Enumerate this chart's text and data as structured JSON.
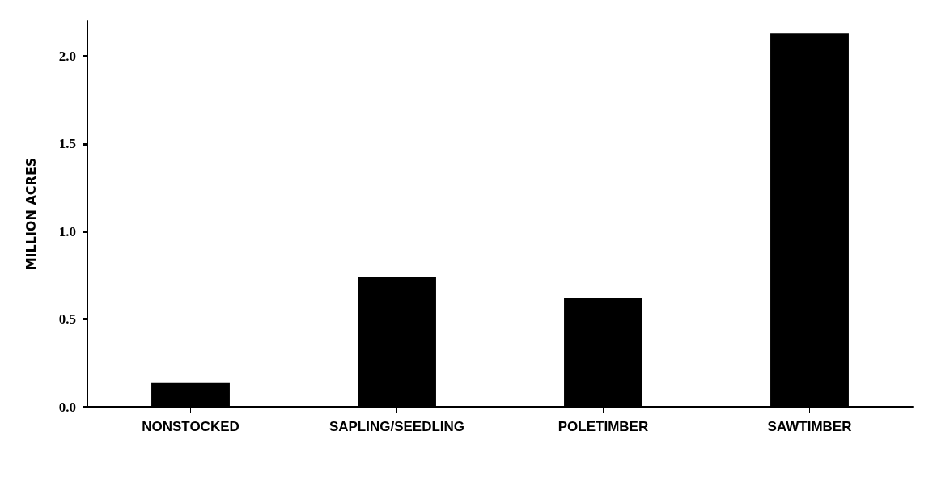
{
  "chart_data": {
    "type": "bar",
    "ylabel": "MILLION ACRES",
    "categories": [
      "NONSTOCKED",
      "SAPLING/SEEDLING",
      "POLETIMBER",
      "SAWTIMBER"
    ],
    "values": [
      0.14,
      0.74,
      0.62,
      2.13
    ],
    "color": "#000000",
    "ylim": [
      0,
      2.2
    ],
    "yticks": [
      {
        "value": 0,
        "label": "0.0"
      },
      {
        "value": 0.5,
        "label": "0.5"
      },
      {
        "value": 1,
        "label": "1.0"
      },
      {
        "value": 1.5,
        "label": "1.5"
      },
      {
        "value": 2,
        "label": "2.0"
      }
    ],
    "grid": false
  }
}
